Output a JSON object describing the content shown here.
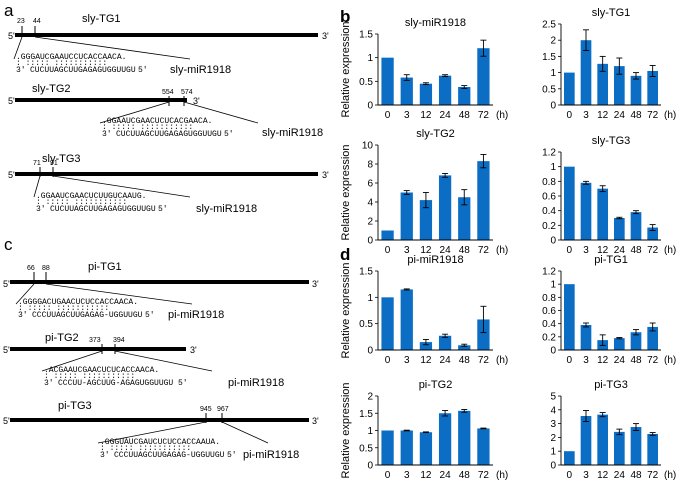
{
  "panels": {
    "a": "a",
    "b": "b",
    "c": "c",
    "d": "d"
  },
  "common": {
    "five_prime": "5'",
    "three_prime": "3'",
    "pairing": ": ::::: :::::::::::"
  },
  "panel_a": {
    "diagrams": [
      {
        "gene": "sly-TG1",
        "pos_start": "23",
        "pos_end": "44",
        "target_seq": ".GGGAUCGAAUCCUCACCAACA.",
        "mirna_prefix": "3'",
        "mirna_seq": "CUCUUAGCUUGAGAGUGGUUGU",
        "mirna_suffix": "5'",
        "mirna_label": "sly-miR1918"
      },
      {
        "gene": "sly-TG2",
        "pos_start": "554",
        "pos_end": "574",
        "target_seq": ".GGAAUCGAACUCUCACGAACA.",
        "mirna_prefix": "3'",
        "mirna_seq": "CUCUUAGCUUGAGAGUGGUUGU",
        "mirna_suffix": "5'",
        "mirna_label": "sly-miR1918"
      },
      {
        "gene": "sly-TG3",
        "pos_start": "71",
        "pos_end": "91",
        "target_seq": ".GGAAUCGAACUCUUGUCAAUG.",
        "mirna_prefix": "3'",
        "mirna_seq": "CUCUUAGCUUGAGAGUGGUUGU",
        "mirna_suffix": "5'",
        "mirna_label": "sly-miR1918"
      }
    ]
  },
  "panel_c": {
    "diagrams": [
      {
        "gene": "pi-TG1",
        "pos_start": "66",
        "pos_end": "88",
        "target_seq": ".GGGGACUGAACUCUCCACCAACA.",
        "mirna_prefix": "3'",
        "mirna_seq": "CCCUUAGCUUGAGAG-UGGUUGU",
        "mirna_suffix": "5'",
        "mirna_label": "pi-miR1918"
      },
      {
        "gene": "pi-TG2",
        "pos_start": "373",
        "pos_end": "394",
        "target_seq": ".ACGAAUCGAACUCUCACCAACA.",
        "mirna_prefix": "3'",
        "mirna_seq": "CCCUU-AGCUUG-AGAGUGGUUGU",
        "mirna_suffix": "5'",
        "mirna_label": "pi-miR1918"
      },
      {
        "gene": "pi-TG3",
        "pos_start": "945",
        "pos_end": "967",
        "target_seq": ".GGGUAUCGAUCUCUCCACCAAUA.",
        "mirna_prefix": "3'",
        "mirna_seq": "CCCUUAGCUUGAGAG-UGGUUGU",
        "mirna_suffix": "5'",
        "mirna_label": "pi-miR1918"
      }
    ]
  },
  "chart_data": [
    {
      "type": "bar",
      "title": "sly-miR1918",
      "ylabel": "Relative expression",
      "xlabel": "",
      "x_unit": "(h)",
      "categories": [
        "0",
        "3",
        "12",
        "24",
        "48",
        "72"
      ],
      "values": [
        1.0,
        0.58,
        0.45,
        0.62,
        0.38,
        1.2
      ],
      "errors": [
        0,
        0.06,
        0.02,
        0.02,
        0.03,
        0.17
      ],
      "ylim": [
        0,
        1.5
      ],
      "yticks": [
        "0",
        "0.5",
        "1",
        "1.5"
      ],
      "color": "#0b6dc4"
    },
    {
      "type": "bar",
      "title": "sly-TG1",
      "ylabel": "",
      "xlabel": "",
      "x_unit": "(h)",
      "categories": [
        "0",
        "3",
        "12",
        "24",
        "48",
        "72"
      ],
      "values": [
        1.0,
        2.0,
        1.27,
        1.2,
        0.9,
        1.05
      ],
      "errors": [
        0,
        0.32,
        0.23,
        0.25,
        0.1,
        0.17
      ],
      "ylim": [
        0,
        2.5
      ],
      "yticks": [
        "0",
        "0.5",
        "1",
        "1.5",
        "2",
        "2.5"
      ],
      "color": "#0b6dc4"
    },
    {
      "type": "bar",
      "title": "sly-TG2",
      "ylabel": "Relative expression",
      "xlabel": "",
      "x_unit": "(h)",
      "categories": [
        "0",
        "3",
        "12",
        "24",
        "48",
        "72"
      ],
      "values": [
        1.0,
        5.0,
        4.2,
        6.8,
        4.5,
        8.3
      ],
      "errors": [
        0,
        0.2,
        0.8,
        0.2,
        0.8,
        0.7
      ],
      "ylim": [
        0,
        10
      ],
      "yticks": [
        "0",
        "2",
        "4",
        "6",
        "8",
        "10"
      ],
      "color": "#0b6dc4"
    },
    {
      "type": "bar",
      "title": "sly-TG3",
      "ylabel": "",
      "xlabel": "",
      "x_unit": "(h)",
      "categories": [
        "0",
        "3",
        "12",
        "24",
        "48",
        "72"
      ],
      "values": [
        1.0,
        0.78,
        0.7,
        0.3,
        0.38,
        0.17
      ],
      "errors": [
        0,
        0.02,
        0.04,
        0.01,
        0.02,
        0.04
      ],
      "ylim": [
        0,
        1.2
      ],
      "yticks": [
        "0",
        "0.2",
        "0.4",
        "0.6",
        "0.8",
        "1",
        "1.2"
      ],
      "color": "#0b6dc4"
    },
    {
      "type": "bar",
      "title": "pi-miR1918",
      "ylabel": "Relative expression",
      "xlabel": "",
      "x_unit": "(h)",
      "categories": [
        "0",
        "3",
        "12",
        "24",
        "48",
        "72"
      ],
      "values": [
        1.0,
        1.15,
        0.15,
        0.27,
        0.09,
        0.58
      ],
      "errors": [
        0,
        0.01,
        0.05,
        0.03,
        0.02,
        0.25
      ],
      "ylim": [
        0,
        1.5
      ],
      "yticks": [
        "0",
        "0.5",
        "1",
        "1.5"
      ],
      "color": "#0b6dc4"
    },
    {
      "type": "bar",
      "title": "pi-TG1",
      "ylabel": "",
      "xlabel": "",
      "x_unit": "(h)",
      "categories": [
        "0",
        "3",
        "12",
        "24",
        "48",
        "72"
      ],
      "values": [
        1.0,
        0.38,
        0.15,
        0.18,
        0.27,
        0.35
      ],
      "errors": [
        0,
        0.03,
        0.08,
        0.01,
        0.04,
        0.06
      ],
      "ylim": [
        0,
        1.2
      ],
      "yticks": [
        "0",
        "0.2",
        "0.4",
        "0.6",
        "0.8",
        "1",
        "1.2"
      ],
      "color": "#0b6dc4"
    },
    {
      "type": "bar",
      "title": "pi-TG2",
      "ylabel": "Relative expression",
      "xlabel": "",
      "x_unit": "(h)",
      "categories": [
        "0",
        "3",
        "12",
        "24",
        "48",
        "72"
      ],
      "values": [
        1.0,
        1.0,
        0.95,
        1.5,
        1.57,
        1.06
      ],
      "errors": [
        0,
        0.01,
        0.01,
        0.08,
        0.04,
        0.01
      ],
      "ylim": [
        0,
        2
      ],
      "yticks": [
        "0",
        "0.5",
        "1",
        "1.5",
        "2"
      ],
      "color": "#0b6dc4"
    },
    {
      "type": "bar",
      "title": "pi-TG3",
      "ylabel": "",
      "xlabel": "",
      "x_unit": "(h)",
      "categories": [
        "0",
        "3",
        "12",
        "24",
        "48",
        "72"
      ],
      "values": [
        1.0,
        3.55,
        3.65,
        2.4,
        2.75,
        2.25
      ],
      "errors": [
        0,
        0.4,
        0.15,
        0.2,
        0.25,
        0.1
      ],
      "ylim": [
        0,
        5
      ],
      "yticks": [
        "0",
        "1",
        "2",
        "3",
        "4",
        "5"
      ],
      "color": "#0b6dc4"
    }
  ]
}
